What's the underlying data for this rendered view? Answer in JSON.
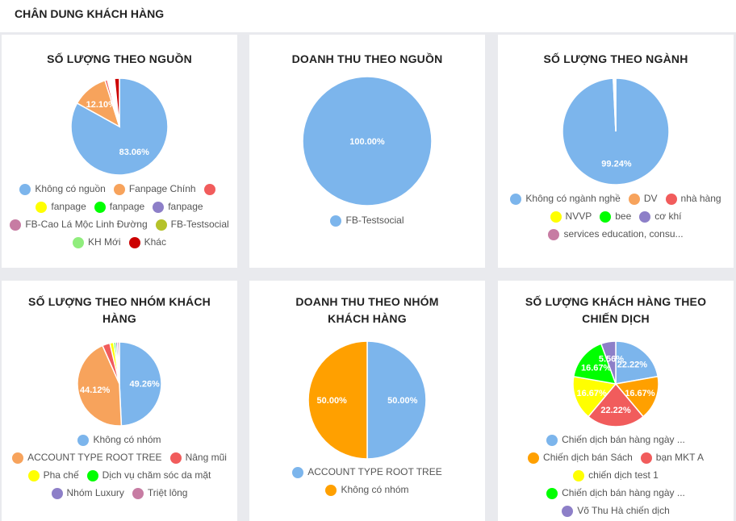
{
  "page_title": "CHÂN DUNG KHÁCH HÀNG",
  "chart_data": [
    {
      "type": "pie",
      "title": "SỐ LƯỢNG THEO NGUỒN",
      "legend_placement": "bottom",
      "slices": [
        {
          "name": "Không có nguồn",
          "value": 83.06,
          "color": "#7cb5ec"
        },
        {
          "name": "Fanpage Chính",
          "value": 12.1,
          "color": "#f7a35c"
        },
        {
          "name": "",
          "value": 0.81,
          "color": "#f15c5c"
        },
        {
          "name": "fanpage",
          "value": 0.4,
          "color": "#ffff00"
        },
        {
          "name": "fanpage",
          "value": 0.4,
          "color": "#00ff00"
        },
        {
          "name": "fanpage",
          "value": 0.4,
          "color": "#8d7fc8"
        },
        {
          "name": "FB-Cao Lá Mộc Linh Đường",
          "value": 0.4,
          "color": "#c77ca3"
        },
        {
          "name": "FB-Testsocial",
          "value": 0.4,
          "color": "#b5c22a"
        },
        {
          "name": "KH Mới",
          "value": 0.4,
          "color": "#90ed7d"
        },
        {
          "name": "Khác",
          "value": 1.63,
          "color": "#cc0000"
        }
      ]
    },
    {
      "type": "pie",
      "title": "DOANH THU THEO NGUỒN",
      "legend_placement": "bottom",
      "slices": [
        {
          "name": "FB-Testsocial",
          "value": 100.0,
          "color": "#7cb5ec"
        }
      ]
    },
    {
      "type": "pie",
      "title": "SỐ LƯỢNG THEO NGÀNH",
      "legend_placement": "bottom",
      "slices": [
        {
          "name": "Không có ngành nghề",
          "value": 99.24,
          "color": "#7cb5ec"
        },
        {
          "name": "DV",
          "value": 0.13,
          "color": "#f7a35c"
        },
        {
          "name": "nhà hàng",
          "value": 0.13,
          "color": "#f15c5c"
        },
        {
          "name": "NVVP",
          "value": 0.13,
          "color": "#ffff00"
        },
        {
          "name": "bee",
          "value": 0.13,
          "color": "#00ff00"
        },
        {
          "name": "cơ khí",
          "value": 0.12,
          "color": "#8d7fc8"
        },
        {
          "name": "services education, consu...",
          "value": 0.12,
          "color": "#c77ca3"
        }
      ]
    },
    {
      "type": "pie",
      "title": "SỐ LƯỢNG THEO NHÓM KHÁCH HÀNG",
      "legend_placement": "bottom",
      "slices": [
        {
          "name": "Không có nhóm",
          "value": 49.26,
          "color": "#7cb5ec"
        },
        {
          "name": "ACCOUNT TYPE ROOT TREE",
          "value": 44.12,
          "color": "#f7a35c"
        },
        {
          "name": "Nâng mũi",
          "value": 2.94,
          "color": "#f15c5c"
        },
        {
          "name": "Pha chế",
          "value": 1.47,
          "color": "#ffff00"
        },
        {
          "name": "Dịch vụ chăm sóc da mặt",
          "value": 0.74,
          "color": "#00ff00"
        },
        {
          "name": "Nhóm Luxury",
          "value": 0.74,
          "color": "#8d7fc8"
        },
        {
          "name": "Triệt lông",
          "value": 0.73,
          "color": "#c77ca3"
        }
      ]
    },
    {
      "type": "pie",
      "title": "DOANH THU THEO NHÓM KHÁCH HÀNG",
      "legend_placement": "bottom",
      "slices": [
        {
          "name": "ACCOUNT TYPE ROOT TREE",
          "value": 50.0,
          "color": "#7cb5ec"
        },
        {
          "name": "Không có nhóm",
          "value": 50.0,
          "color": "#ffa000"
        }
      ]
    },
    {
      "type": "pie",
      "title": "SỐ LƯỢNG KHÁCH HÀNG THEO CHIẾN DỊCH",
      "legend_placement": "bottom",
      "slices": [
        {
          "name": "Chiến dịch bán hàng ngày ...",
          "value": 22.22,
          "color": "#7cb5ec"
        },
        {
          "name": "Chiến dịch bán Sách",
          "value": 16.67,
          "color": "#ffa000"
        },
        {
          "name": "bạn MKT A",
          "value": 22.22,
          "color": "#f15c5c"
        },
        {
          "name": "chiến dịch test 1",
          "value": 16.67,
          "color": "#ffff00"
        },
        {
          "name": "Chiến dịch bán hàng ngày ...",
          "value": 16.67,
          "color": "#00ff00"
        },
        {
          "name": "Võ Thu Hà chiến dịch",
          "value": 5.56,
          "color": "#8d7fc8"
        }
      ]
    }
  ]
}
